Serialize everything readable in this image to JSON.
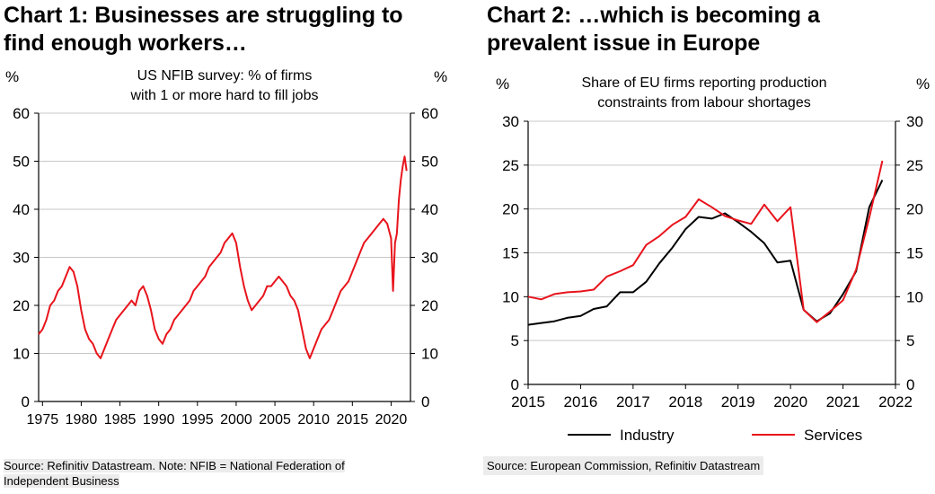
{
  "charts": [
    {
      "title_line1": "Chart 1: Businesses are struggling to",
      "title_line2": "find enough workers…",
      "source": "Source:  Refinitiv Datastream. Note: NFIB = National Federation of Independent Business"
    },
    {
      "title_line1": "Chart 2: …which is becoming a",
      "title_line2": "prevalent issue in Europe",
      "source": "Source:  European Commission, Refinitiv Datastream"
    }
  ],
  "chart_data": [
    {
      "type": "line",
      "subtitle_line1": "US NFIB survey: % of firms",
      "subtitle_line2": "with 1 or more hard to fill jobs",
      "ylabel_left": "%",
      "ylabel_right": "%",
      "ylim": [
        0,
        60
      ],
      "yticks": [
        0,
        10,
        20,
        30,
        40,
        50,
        60
      ],
      "xlim": [
        1974.5,
        2022.5
      ],
      "xticks": [
        1975,
        1980,
        1985,
        1990,
        1995,
        2000,
        2005,
        2010,
        2015,
        2020
      ],
      "grid": true,
      "legend": "none",
      "color": "#e8141c",
      "series": [
        {
          "x": [
            1974.5,
            1975.0,
            1975.5,
            1976.0,
            1976.5,
            1977.0,
            1977.5,
            1978.0,
            1978.5,
            1979.0,
            1979.5,
            1980.0,
            1980.5,
            1981.0,
            1981.5,
            1982.0,
            1982.5,
            1983.0,
            1983.5,
            1984.0,
            1984.5,
            1985.0,
            1985.5,
            1986.0,
            1986.5,
            1987.0,
            1987.5,
            1988.0,
            1988.5,
            1989.0,
            1989.5,
            1990.0,
            1990.5,
            1991.0,
            1991.5,
            1992.0,
            1992.5,
            1993.0,
            1993.5,
            1994.0,
            1994.5,
            1995.0,
            1995.5,
            1996.0,
            1996.5,
            1997.0,
            1997.5,
            1998.0,
            1998.5,
            1999.0,
            1999.5,
            2000.0,
            2000.5,
            2001.0,
            2001.5,
            2002.0,
            2002.5,
            2003.0,
            2003.5,
            2004.0,
            2004.5,
            2005.0,
            2005.5,
            2006.0,
            2006.5,
            2007.0,
            2007.5,
            2008.0,
            2008.5,
            2009.0,
            2009.5,
            2010.0,
            2010.5,
            2011.0,
            2011.5,
            2012.0,
            2012.5,
            2013.0,
            2013.5,
            2014.0,
            2014.5,
            2015.0,
            2015.5,
            2016.0,
            2016.5,
            2017.0,
            2017.5,
            2018.0,
            2018.5,
            2019.0,
            2019.5,
            2020.0,
            2020.25,
            2020.5,
            2020.75,
            2021.0,
            2021.25,
            2021.5,
            2021.75,
            2022.0
          ],
          "values": [
            14,
            15,
            17,
            20,
            21,
            23,
            24,
            26,
            28,
            27,
            24,
            19,
            15,
            13,
            12,
            10,
            9,
            11,
            13,
            15,
            17,
            18,
            19,
            20,
            21,
            20,
            23,
            24,
            22,
            19,
            15,
            13,
            12,
            14,
            15,
            17,
            18,
            19,
            20,
            21,
            23,
            24,
            25,
            26,
            28,
            29,
            30,
            31,
            33,
            34,
            35,
            33,
            28,
            24,
            21,
            19,
            20,
            21,
            22,
            24,
            24,
            25,
            26,
            25,
            24,
            22,
            21,
            19,
            15,
            11,
            9,
            11,
            13,
            15,
            16,
            17,
            19,
            21,
            23,
            24,
            25,
            27,
            29,
            31,
            33,
            34,
            35,
            36,
            37,
            38,
            37,
            34,
            23,
            33,
            35,
            42,
            46,
            49,
            51,
            48
          ]
        }
      ]
    },
    {
      "type": "line",
      "subtitle_line1": "Share of EU firms reporting production",
      "subtitle_line2": "constraints from labour shortages",
      "ylabel_left": "%",
      "ylabel_right": "%",
      "ylim": [
        0,
        30
      ],
      "yticks": [
        0,
        5,
        10,
        15,
        20,
        25,
        30
      ],
      "xlim": [
        2015,
        2022
      ],
      "xticks": [
        2015,
        2016,
        2017,
        2018,
        2019,
        2020,
        2021,
        2022
      ],
      "grid": true,
      "legend": "bottom",
      "series": [
        {
          "name": "Industry",
          "color": "#000000",
          "x": [
            2015.0,
            2015.25,
            2015.5,
            2015.75,
            2016.0,
            2016.25,
            2016.5,
            2016.75,
            2017.0,
            2017.25,
            2017.5,
            2017.75,
            2018.0,
            2018.25,
            2018.5,
            2018.75,
            2019.0,
            2019.25,
            2019.5,
            2019.75,
            2020.0,
            2020.25,
            2020.5,
            2020.75,
            2021.0,
            2021.25,
            2021.5,
            2021.75
          ],
          "values": [
            6.8,
            7.0,
            7.2,
            7.6,
            7.8,
            8.6,
            8.9,
            10.5,
            10.5,
            11.7,
            13.8,
            15.6,
            17.7,
            19.1,
            18.9,
            19.5,
            18.5,
            17.4,
            16.1,
            13.9,
            14.1,
            8.5,
            7.2,
            8.1,
            10.3,
            12.9,
            20.2,
            23.3
          ]
        },
        {
          "name": "Services",
          "color": "#e8141c",
          "x": [
            2015.0,
            2015.25,
            2015.5,
            2015.75,
            2016.0,
            2016.25,
            2016.5,
            2016.75,
            2017.0,
            2017.25,
            2017.5,
            2017.75,
            2018.0,
            2018.25,
            2018.5,
            2018.75,
            2019.0,
            2019.25,
            2019.5,
            2019.75,
            2020.0,
            2020.25,
            2020.5,
            2020.75,
            2021.0,
            2021.25,
            2021.5,
            2021.75
          ],
          "values": [
            10.0,
            9.7,
            10.3,
            10.5,
            10.6,
            10.8,
            12.3,
            12.9,
            13.6,
            15.9,
            16.9,
            18.2,
            19.1,
            21.1,
            20.2,
            19.2,
            18.7,
            18.3,
            20.5,
            18.6,
            20.2,
            8.5,
            7.1,
            8.3,
            9.6,
            13.1,
            19.0,
            25.5
          ]
        }
      ]
    }
  ]
}
